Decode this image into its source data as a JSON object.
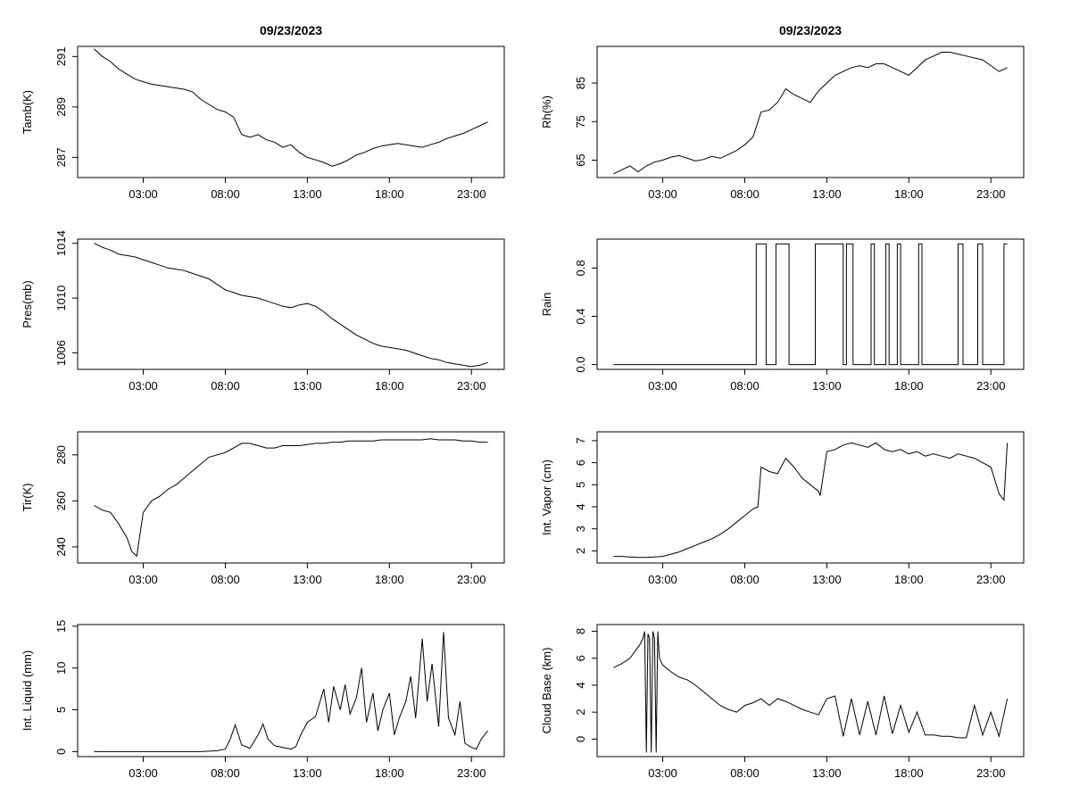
{
  "figure": {
    "titles": [
      "09/23/2023",
      "09/23/2023"
    ]
  },
  "chart_data": [
    {
      "type": "line",
      "ylabel": "Tamb(K)",
      "xticks": [
        3,
        8,
        13,
        18,
        23
      ],
      "xtick_labels": [
        "03:00",
        "08:00",
        "13:00",
        "18:00",
        "23:00"
      ],
      "xlim": [
        -1,
        25
      ],
      "yticks": [
        287,
        289,
        291
      ],
      "yrange_data": [
        286.2,
        291.4
      ],
      "x": [
        0,
        0.5,
        1,
        1.5,
        2,
        2.5,
        3,
        3.5,
        4,
        4.5,
        5,
        5.5,
        6,
        6.5,
        7,
        7.5,
        8,
        8.5,
        9,
        9.5,
        10,
        10.5,
        11,
        11.5,
        12,
        12.5,
        13,
        13.5,
        14,
        14.5,
        15,
        15.5,
        16,
        16.5,
        17,
        17.5,
        18,
        18.5,
        19,
        19.5,
        20,
        20.5,
        21,
        21.5,
        22,
        22.5,
        23,
        23.5,
        24
      ],
      "y": [
        291.3,
        291.0,
        290.8,
        290.5,
        290.3,
        290.1,
        290.0,
        289.9,
        289.85,
        289.8,
        289.75,
        289.7,
        289.6,
        289.3,
        289.1,
        288.9,
        288.8,
        288.6,
        287.9,
        287.8,
        287.9,
        287.7,
        287.6,
        287.4,
        287.5,
        287.2,
        287.0,
        286.9,
        286.8,
        286.65,
        286.75,
        286.9,
        287.1,
        287.2,
        287.35,
        287.45,
        287.5,
        287.55,
        287.5,
        287.45,
        287.4,
        287.5,
        287.6,
        287.75,
        287.85,
        287.95,
        288.1,
        288.25,
        288.4
      ]
    },
    {
      "type": "line",
      "ylabel": "Rh(%)",
      "xticks": [
        3,
        8,
        13,
        18,
        23
      ],
      "xtick_labels": [
        "03:00",
        "08:00",
        "13:00",
        "18:00",
        "23:00"
      ],
      "xlim": [
        -1,
        25
      ],
      "yticks": [
        65,
        75,
        85
      ],
      "yrange_data": [
        60.5,
        94.5
      ],
      "x": [
        0,
        0.5,
        1,
        1.5,
        2,
        2.5,
        3,
        3.5,
        4,
        4.5,
        5,
        5.5,
        6,
        6.5,
        7,
        7.5,
        8,
        8.5,
        9,
        9.5,
        10,
        10.5,
        11,
        11.5,
        12,
        12.5,
        13,
        13.5,
        14,
        14.5,
        15,
        15.5,
        16,
        16.5,
        17,
        17.5,
        18,
        18.5,
        19,
        19.5,
        20,
        20.5,
        21,
        21.5,
        22,
        22.5,
        23,
        23.5,
        24
      ],
      "y": [
        61.5,
        62.5,
        63.5,
        62.0,
        63.5,
        64.5,
        65.0,
        65.8,
        66.2,
        65.5,
        64.8,
        65.2,
        66.0,
        65.5,
        66.5,
        67.5,
        69.0,
        71.0,
        77.5,
        78.0,
        80.0,
        83.5,
        82.0,
        81.0,
        80.0,
        83.0,
        85.0,
        87.0,
        88.0,
        89.0,
        89.5,
        89.0,
        90.0,
        90.0,
        89.0,
        88.0,
        87.0,
        89.0,
        91.0,
        92.0,
        93.0,
        93.0,
        92.5,
        92.0,
        91.5,
        91.0,
        89.5,
        88.0,
        89.0
      ]
    },
    {
      "type": "line",
      "ylabel": "Pres(mb)",
      "xticks": [
        3,
        8,
        13,
        18,
        23
      ],
      "xtick_labels": [
        "03:00",
        "08:00",
        "13:00",
        "18:00",
        "23:00"
      ],
      "xlim": [
        -1,
        25
      ],
      "yticks": [
        1006,
        1010,
        1014
      ],
      "yrange_data": [
        1004.8,
        1014.3
      ],
      "x": [
        0,
        0.5,
        1,
        1.5,
        2,
        2.5,
        3,
        3.5,
        4,
        4.5,
        5,
        5.5,
        6,
        6.5,
        7,
        7.5,
        8,
        8.5,
        9,
        9.5,
        10,
        10.5,
        11,
        11.5,
        12,
        12.5,
        13,
        13.5,
        14,
        14.5,
        15,
        15.5,
        16,
        16.5,
        17,
        17.5,
        18,
        18.5,
        19,
        19.5,
        20,
        20.5,
        21,
        21.5,
        22,
        22.5,
        23,
        23.5,
        24
      ],
      "y": [
        1014.0,
        1013.7,
        1013.5,
        1013.2,
        1013.1,
        1013.0,
        1012.8,
        1012.6,
        1012.4,
        1012.2,
        1012.1,
        1012.0,
        1011.8,
        1011.6,
        1011.4,
        1011.0,
        1010.6,
        1010.4,
        1010.2,
        1010.1,
        1010.0,
        1009.8,
        1009.6,
        1009.4,
        1009.3,
        1009.5,
        1009.6,
        1009.4,
        1009.0,
        1008.5,
        1008.1,
        1007.7,
        1007.3,
        1007.0,
        1006.7,
        1006.5,
        1006.4,
        1006.3,
        1006.2,
        1006.0,
        1005.8,
        1005.6,
        1005.5,
        1005.3,
        1005.2,
        1005.1,
        1005.0,
        1005.1,
        1005.3
      ]
    },
    {
      "type": "line",
      "ylabel": "Rain",
      "xticks": [
        3,
        8,
        13,
        18,
        23
      ],
      "xtick_labels": [
        "03:00",
        "08:00",
        "13:00",
        "18:00",
        "23:00"
      ],
      "xlim": [
        -1,
        25
      ],
      "yticks": [
        0.0,
        0.4,
        0.8
      ],
      "ytick_labels": [
        "0.0",
        "0.4",
        "0.8"
      ],
      "yrange_data": [
        -0.04,
        1.04
      ],
      "x": [
        0,
        8.7,
        8.7,
        9.3,
        9.3,
        9.9,
        9.9,
        10.7,
        10.7,
        12.3,
        12.3,
        14.0,
        14.0,
        14.2,
        14.2,
        14.6,
        14.6,
        15.7,
        15.7,
        15.9,
        15.9,
        16.6,
        16.6,
        16.8,
        16.8,
        17.3,
        17.3,
        17.5,
        17.5,
        18.6,
        18.6,
        18.8,
        18.8,
        21.0,
        21.0,
        21.3,
        21.3,
        22.2,
        22.2,
        22.5,
        22.5,
        23.8,
        23.8,
        24.0
      ],
      "y": [
        0,
        0,
        1,
        1,
        0,
        0,
        1,
        1,
        0,
        0,
        1,
        1,
        0,
        0,
        1,
        1,
        0,
        0,
        1,
        1,
        0,
        0,
        1,
        1,
        0,
        0,
        1,
        1,
        0,
        0,
        1,
        1,
        0,
        0,
        1,
        1,
        0,
        0,
        1,
        1,
        0,
        0,
        1,
        1
      ]
    },
    {
      "type": "line",
      "ylabel": "Tir(K)",
      "xticks": [
        3,
        8,
        13,
        18,
        23
      ],
      "xtick_labels": [
        "03:00",
        "08:00",
        "13:00",
        "18:00",
        "23:00"
      ],
      "xlim": [
        -1,
        25
      ],
      "yticks": [
        240,
        260,
        280
      ],
      "yrange_data": [
        233,
        290
      ],
      "x": [
        0,
        0.5,
        1,
        1.5,
        2,
        2.3,
        2.6,
        3,
        3.5,
        4,
        4.5,
        5,
        5.5,
        6,
        6.5,
        7,
        7.5,
        8,
        8.5,
        9,
        9.5,
        10,
        10.5,
        11,
        11.5,
        12,
        12.5,
        13,
        13.5,
        14,
        14.5,
        15,
        15.5,
        16,
        16.5,
        17,
        17.5,
        18,
        18.5,
        19,
        19.5,
        20,
        20.5,
        21,
        21.5,
        22,
        22.5,
        23,
        23.5,
        24
      ],
      "y": [
        258,
        256,
        255,
        250,
        244,
        238,
        236,
        255,
        260,
        262,
        265,
        267,
        270,
        273,
        276,
        279,
        280,
        281,
        283,
        285,
        285,
        284,
        283,
        283,
        284,
        284,
        284,
        284.5,
        285,
        285,
        285.5,
        285.5,
        286,
        286,
        286,
        286,
        286.5,
        286.5,
        286.5,
        286.5,
        286.5,
        286.5,
        287,
        286.5,
        286.5,
        286.5,
        286,
        286,
        285.5,
        285.5
      ]
    },
    {
      "type": "line",
      "ylabel": "Int. Vapor (cm)",
      "xticks": [
        3,
        8,
        13,
        18,
        23
      ],
      "xtick_labels": [
        "03:00",
        "08:00",
        "13:00",
        "18:00",
        "23:00"
      ],
      "xlim": [
        -1,
        25
      ],
      "yticks": [
        2,
        3,
        4,
        5,
        6,
        7
      ],
      "yrange_data": [
        1.45,
        7.4
      ],
      "x": [
        0,
        0.5,
        1,
        1.5,
        2,
        2.5,
        3,
        3.5,
        4,
        4.5,
        5,
        5.5,
        6,
        6.5,
        7,
        7.5,
        8,
        8.5,
        8.8,
        9,
        9.5,
        10,
        10.5,
        11,
        11.5,
        12,
        12.5,
        12.6,
        13,
        13.5,
        14,
        14.5,
        15,
        15.5,
        16,
        16.5,
        17,
        17.5,
        18,
        18.5,
        19,
        19.5,
        20,
        20.5,
        21,
        21.5,
        22,
        22.5,
        23,
        23.5,
        23.8,
        24
      ],
      "y": [
        1.75,
        1.75,
        1.72,
        1.7,
        1.7,
        1.72,
        1.75,
        1.85,
        1.95,
        2.1,
        2.25,
        2.4,
        2.55,
        2.75,
        3.0,
        3.3,
        3.6,
        3.9,
        4.0,
        5.8,
        5.6,
        5.5,
        6.2,
        5.8,
        5.3,
        5.0,
        4.7,
        4.5,
        6.5,
        6.6,
        6.8,
        6.9,
        6.8,
        6.7,
        6.9,
        6.6,
        6.5,
        6.6,
        6.4,
        6.5,
        6.3,
        6.4,
        6.3,
        6.2,
        6.4,
        6.3,
        6.2,
        6.0,
        5.8,
        4.6,
        4.3,
        6.9
      ]
    },
    {
      "type": "line",
      "ylabel": "Int. Liquid (mm)",
      "xticks": [
        3,
        8,
        13,
        18,
        23
      ],
      "xtick_labels": [
        "03:00",
        "08:00",
        "13:00",
        "18:00",
        "23:00"
      ],
      "xlim": [
        -1,
        25
      ],
      "yticks": [
        0,
        5,
        10,
        15
      ],
      "yrange_data": [
        -0.6,
        15.2
      ],
      "x": [
        0,
        1,
        2,
        3,
        4,
        5,
        6,
        6.5,
        7,
        7.5,
        8,
        8.3,
        8.6,
        9.0,
        9.5,
        10.0,
        10.3,
        10.6,
        11,
        11.5,
        12,
        12.3,
        12.6,
        13,
        13.5,
        14,
        14.3,
        14.6,
        15,
        15.3,
        15.6,
        16,
        16.3,
        16.6,
        17,
        17.3,
        17.6,
        18,
        18.3,
        18.6,
        19,
        19.3,
        19.6,
        20,
        20.3,
        20.6,
        21,
        21.3,
        21.6,
        22,
        22.3,
        22.6,
        23,
        23.3,
        23.6,
        24
      ],
      "y": [
        0,
        0,
        0,
        0,
        0,
        0,
        0,
        0,
        0.05,
        0.1,
        0.3,
        1.5,
        3.2,
        0.8,
        0.4,
        2.0,
        3.3,
        1.5,
        0.7,
        0.5,
        0.3,
        0.6,
        2.0,
        3.5,
        4.2,
        7.5,
        3.5,
        7.8,
        5.0,
        8.0,
        4.5,
        6.5,
        10.0,
        3.5,
        7.0,
        2.5,
        5.0,
        7.0,
        2.0,
        4.0,
        6.0,
        9.0,
        4.0,
        13.5,
        6.0,
        10.5,
        3.0,
        14.3,
        4.0,
        2.0,
        6.0,
        1.0,
        0.5,
        0.3,
        1.5,
        2.5
      ]
    },
    {
      "type": "line",
      "ylabel": "Cloud Base (km)",
      "xticks": [
        3,
        8,
        13,
        18,
        23
      ],
      "xtick_labels": [
        "03:00",
        "08:00",
        "13:00",
        "18:00",
        "23:00"
      ],
      "xlim": [
        -1,
        25
      ],
      "yticks": [
        0,
        2,
        4,
        6,
        8
      ],
      "yrange_data": [
        -1.3,
        8.5
      ],
      "x": [
        0,
        0.5,
        1,
        1.3,
        1.6,
        1.8,
        1.9,
        2.0,
        2.1,
        2.2,
        2.3,
        2.4,
        2.5,
        2.6,
        2.7,
        2.8,
        3.0,
        3.5,
        4,
        4.5,
        5,
        5.5,
        6,
        6.5,
        7,
        7.5,
        8,
        8.5,
        9,
        9.5,
        10,
        10.5,
        11,
        11.5,
        12,
        12.5,
        13,
        13.5,
        14,
        14.5,
        15,
        15.5,
        16,
        16.5,
        17,
        17.5,
        18,
        18.5,
        19,
        19.5,
        20,
        20.5,
        21,
        21.5,
        22,
        22.5,
        23,
        23.5,
        24
      ],
      "y": [
        5.3,
        5.6,
        6.0,
        6.5,
        7.0,
        7.5,
        8.0,
        -1.0,
        7.8,
        7.5,
        -1.0,
        8.0,
        7.5,
        -1.0,
        8.0,
        6.0,
        5.5,
        5.0,
        4.6,
        4.4,
        4.0,
        3.5,
        3.0,
        2.5,
        2.2,
        2.0,
        2.5,
        2.7,
        3.0,
        2.5,
        3.0,
        2.8,
        2.5,
        2.2,
        2.0,
        1.8,
        3.0,
        3.2,
        0.2,
        3.0,
        0.3,
        2.8,
        0.3,
        3.2,
        0.4,
        2.5,
        0.5,
        2.0,
        0.3,
        0.3,
        0.2,
        0.2,
        0.1,
        0.1,
        2.5,
        0.3,
        2.0,
        0.2,
        3.0
      ]
    }
  ]
}
